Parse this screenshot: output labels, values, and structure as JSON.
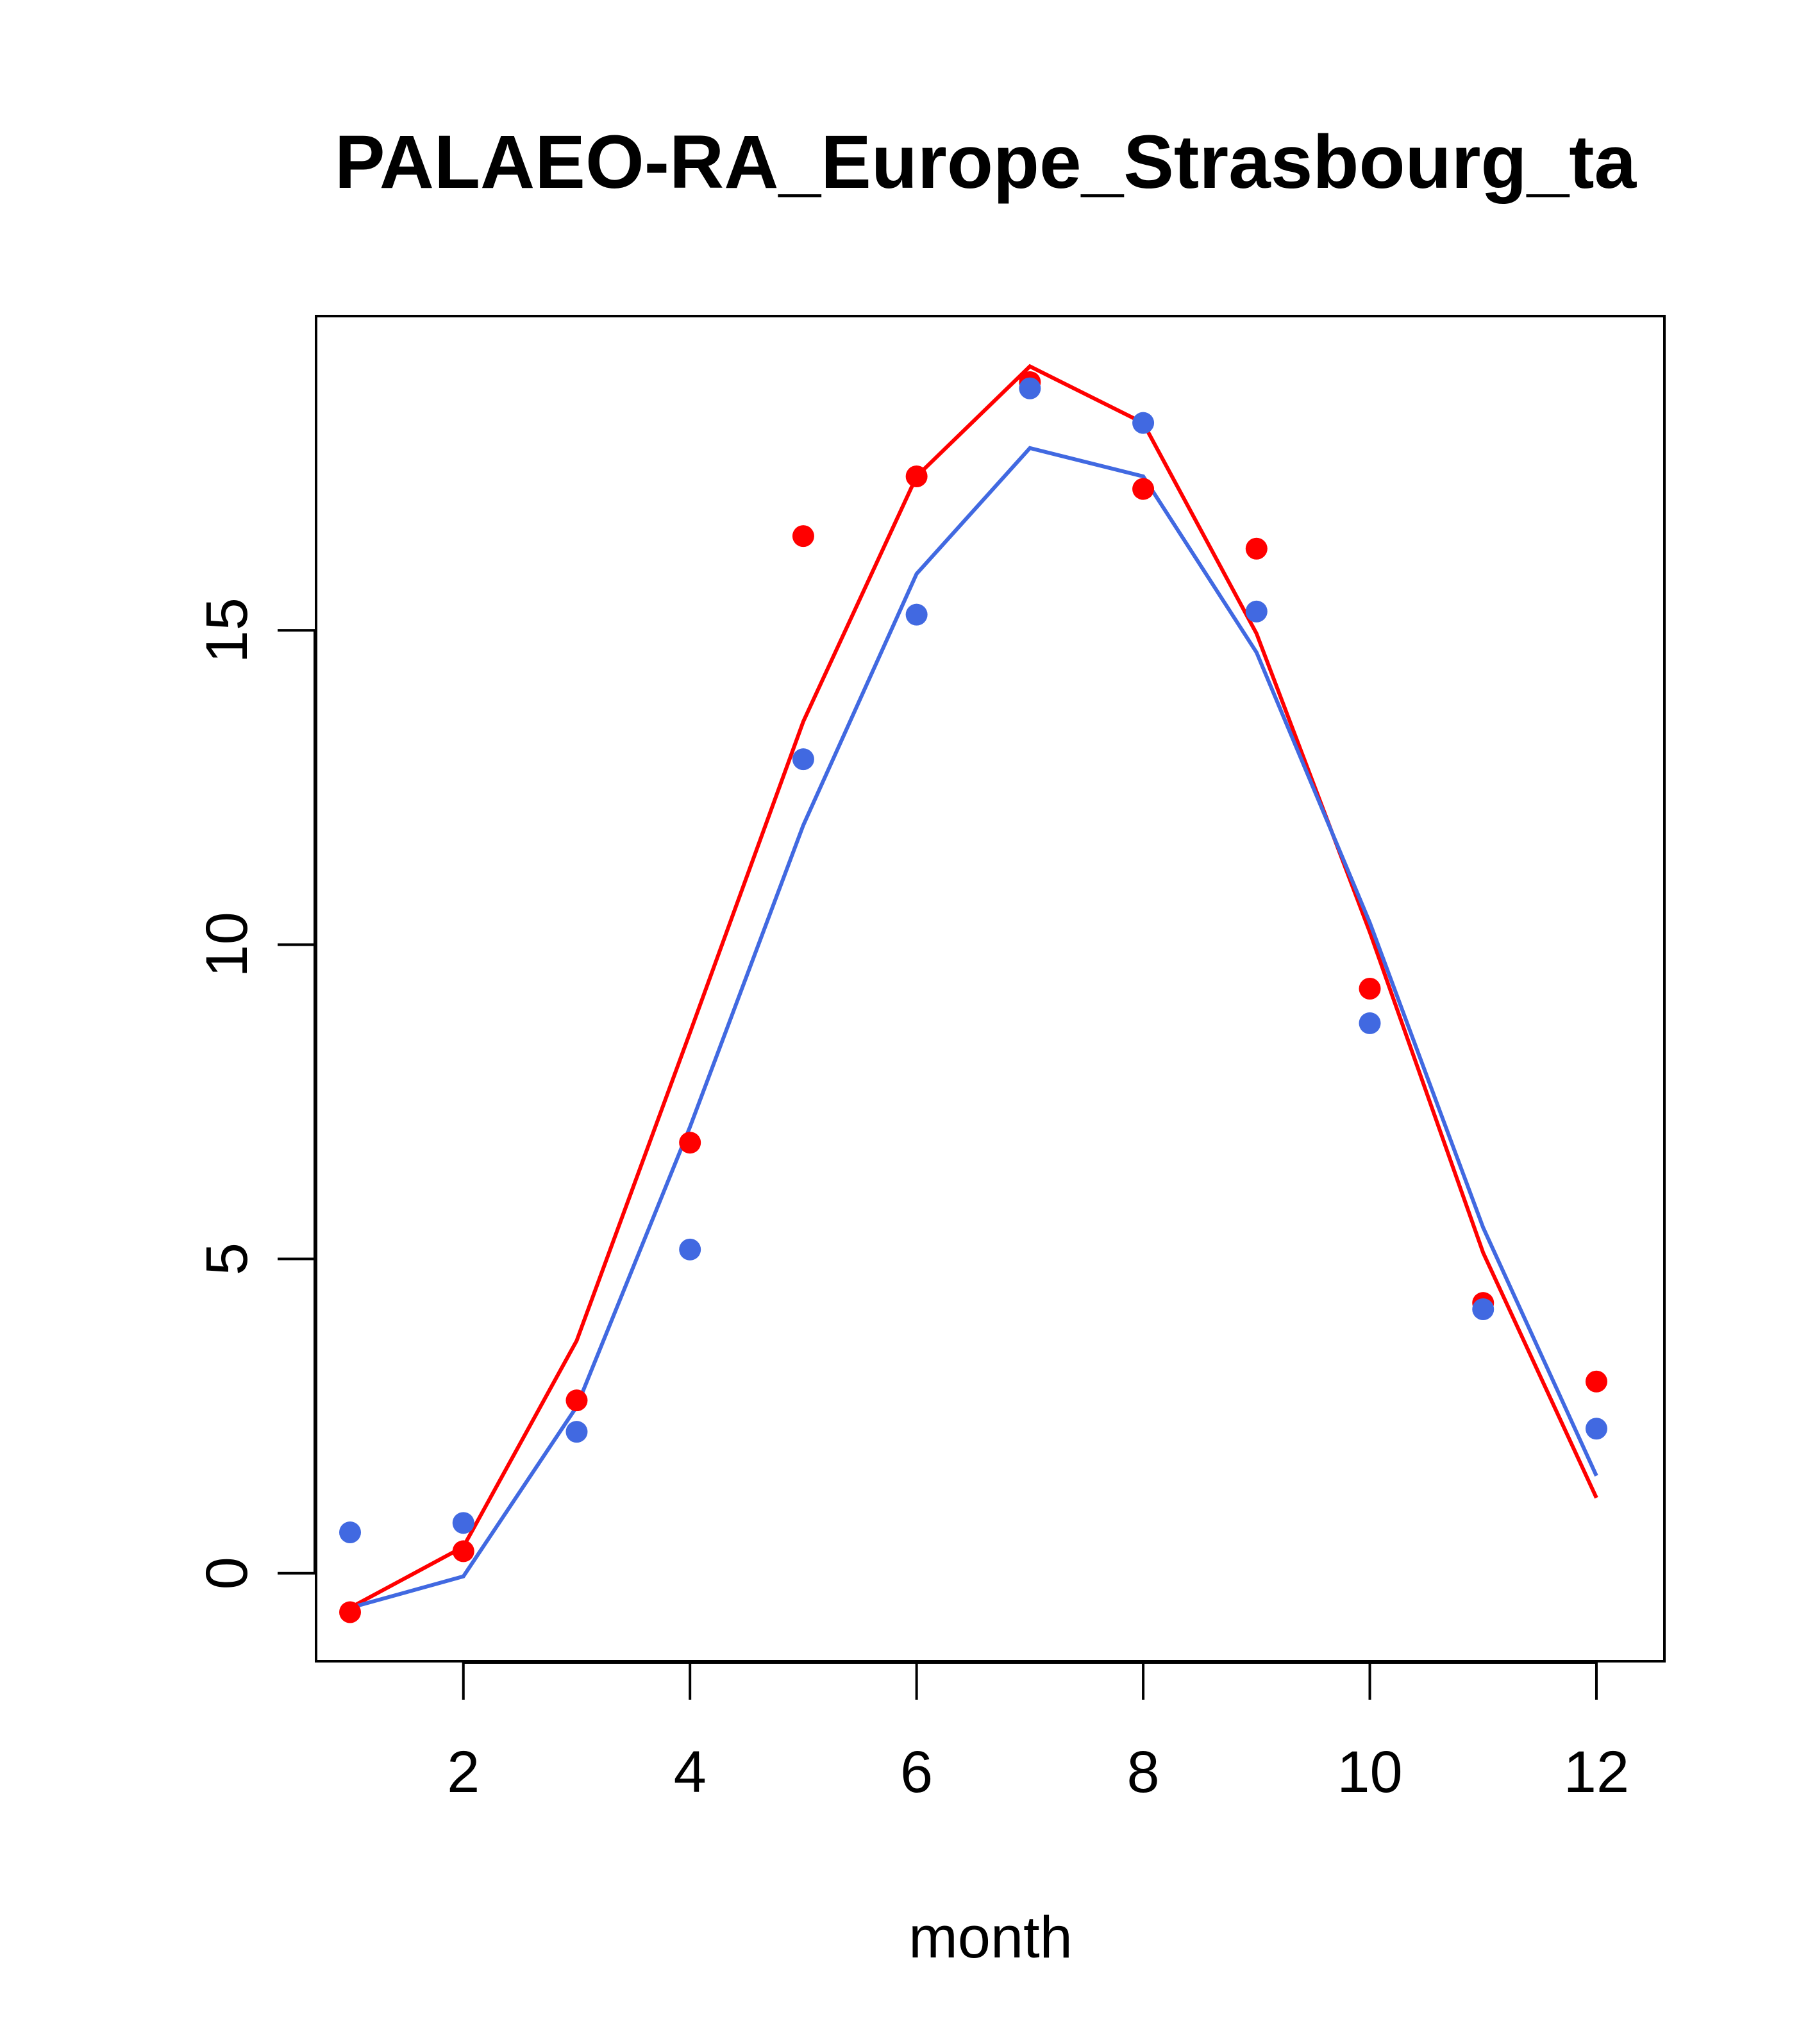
{
  "chart_data": {
    "type": "line",
    "title": "PALAEO-RA_Europe_Strasbourg_ta",
    "xlabel": "month",
    "ylabel": "",
    "xlim": [
      0.7,
      12.6
    ],
    "ylim": [
      -1.4,
      20
    ],
    "x_ticks": [
      2,
      4,
      6,
      8,
      10,
      12
    ],
    "y_ticks": [
      0,
      5,
      10,
      15
    ],
    "x": [
      1,
      2,
      3,
      4,
      5,
      6,
      7,
      8,
      9,
      10,
      11,
      12
    ],
    "series": [
      {
        "color": "#ff0000",
        "line": [
          -0.55,
          0.42,
          3.7,
          8.6,
          13.55,
          17.45,
          19.2,
          18.3,
          14.95,
          10.2,
          5.1,
          1.2
        ],
        "points": [
          -0.62,
          0.35,
          2.75,
          6.85,
          16.5,
          17.45,
          18.95,
          17.25,
          16.3,
          9.3,
          4.3,
          3.05
        ]
      },
      {
        "color": "#4169e1",
        "line": [
          -0.55,
          -0.05,
          2.65,
          7.1,
          11.9,
          15.9,
          17.9,
          17.45,
          14.65,
          10.35,
          5.5,
          1.55
        ],
        "points": [
          0.65,
          0.8,
          2.25,
          5.15,
          12.95,
          15.25,
          18.85,
          18.3,
          15.3,
          8.75,
          4.2,
          2.3
        ]
      }
    ]
  }
}
